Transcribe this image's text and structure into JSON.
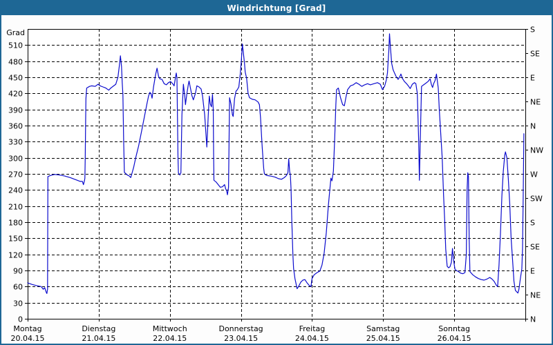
{
  "window": {
    "title": "Windrichtung [Grad]"
  },
  "colors": {
    "titlebar": "#1e6795",
    "window_border": "#1e6795",
    "plot_background": "#ffffff",
    "line": "#0a0acd",
    "grid": "#000000",
    "text": "#000000"
  },
  "chart_data": {
    "type": "line",
    "title": "Windrichtung [Grad]",
    "ylabel": "Grad",
    "ylim": [
      0,
      540
    ],
    "y_tick_step": 30,
    "y_tick_labels": [
      "0",
      "30",
      "60",
      "90",
      "120",
      "150",
      "180",
      "210",
      "240",
      "270",
      "300",
      "330",
      "360",
      "390",
      "420",
      "450",
      "480",
      "510"
    ],
    "grid": "dashed",
    "legend_position": "none",
    "right_axis_compass": [
      {
        "label": "S",
        "deg": 540
      },
      {
        "label": "SE",
        "deg": 495
      },
      {
        "label": "E",
        "deg": 450
      },
      {
        "label": "NE",
        "deg": 405
      },
      {
        "label": "N",
        "deg": 360
      },
      {
        "label": "NW",
        "deg": 315
      },
      {
        "label": "W",
        "deg": 270
      },
      {
        "label": "SW",
        "deg": 225
      },
      {
        "label": "S",
        "deg": 180
      },
      {
        "label": "SE",
        "deg": 135
      },
      {
        "label": "E",
        "deg": 90
      },
      {
        "label": "NE",
        "deg": 45
      },
      {
        "label": "N",
        "deg": 0
      }
    ],
    "days": [
      {
        "name": "Montag",
        "date": "20.04.15"
      },
      {
        "name": "Dienstag",
        "date": "21.04.15"
      },
      {
        "name": "Mittwoch",
        "date": "22.04.15"
      },
      {
        "name": "Donnerstag",
        "date": "23.04.15"
      },
      {
        "name": "Freitag",
        "date": "24.04.15"
      },
      {
        "name": "Samstag",
        "date": "25.04.15"
      },
      {
        "name": "Sonntag",
        "date": "26.04.15"
      }
    ],
    "series": [
      {
        "name": "Windrichtung",
        "x_unit": "days_since_monday",
        "y_unit": "Grad",
        "points": [
          [
            0.0,
            67
          ],
          [
            0.06,
            64
          ],
          [
            0.12,
            62
          ],
          [
            0.19,
            60
          ],
          [
            0.22,
            55
          ],
          [
            0.24,
            58
          ],
          [
            0.26,
            50
          ],
          [
            0.27,
            47
          ],
          [
            0.28,
            55
          ],
          [
            0.285,
            265
          ],
          [
            0.32,
            267
          ],
          [
            0.38,
            269
          ],
          [
            0.45,
            268
          ],
          [
            0.52,
            266
          ],
          [
            0.6,
            263
          ],
          [
            0.68,
            259
          ],
          [
            0.74,
            256
          ],
          [
            0.77,
            256
          ],
          [
            0.785,
            250
          ],
          [
            0.8,
            258
          ],
          [
            0.805,
            262
          ],
          [
            0.81,
            300
          ],
          [
            0.815,
            360
          ],
          [
            0.82,
            410
          ],
          [
            0.83,
            430
          ],
          [
            0.87,
            433
          ],
          [
            0.9,
            434
          ],
          [
            0.95,
            433
          ],
          [
            0.99,
            437
          ],
          [
            1.02,
            434
          ],
          [
            1.06,
            432
          ],
          [
            1.1,
            430
          ],
          [
            1.14,
            426
          ],
          [
            1.17,
            430
          ],
          [
            1.21,
            434
          ],
          [
            1.24,
            437
          ],
          [
            1.27,
            450
          ],
          [
            1.29,
            472
          ],
          [
            1.305,
            490
          ],
          [
            1.32,
            470
          ],
          [
            1.33,
            440
          ],
          [
            1.34,
            418
          ],
          [
            1.35,
            330
          ],
          [
            1.36,
            273
          ],
          [
            1.4,
            268
          ],
          [
            1.43,
            266
          ],
          [
            1.45,
            263
          ],
          [
            1.465,
            270
          ],
          [
            1.49,
            282
          ],
          [
            1.52,
            300
          ],
          [
            1.56,
            322
          ],
          [
            1.6,
            348
          ],
          [
            1.64,
            375
          ],
          [
            1.68,
            402
          ],
          [
            1.7,
            415
          ],
          [
            1.72,
            422
          ],
          [
            1.735,
            419
          ],
          [
            1.75,
            411
          ],
          [
            1.77,
            432
          ],
          [
            1.8,
            455
          ],
          [
            1.82,
            467
          ],
          [
            1.84,
            452
          ],
          [
            1.86,
            447
          ],
          [
            1.89,
            446
          ],
          [
            1.92,
            438
          ],
          [
            1.95,
            436
          ],
          [
            1.98,
            440
          ],
          [
            2.01,
            442
          ],
          [
            2.04,
            438
          ],
          [
            2.06,
            434
          ],
          [
            2.08,
            450
          ],
          [
            2.09,
            458
          ],
          [
            2.1,
            448
          ],
          [
            2.115,
            300
          ],
          [
            2.12,
            272
          ],
          [
            2.14,
            268
          ],
          [
            2.155,
            272
          ],
          [
            2.17,
            380
          ],
          [
            2.19,
            437
          ],
          [
            2.21,
            415
          ],
          [
            2.22,
            399
          ],
          [
            2.24,
            420
          ],
          [
            2.26,
            437
          ],
          [
            2.27,
            443
          ],
          [
            2.29,
            430
          ],
          [
            2.31,
            416
          ],
          [
            2.33,
            408
          ],
          [
            2.36,
            420
          ],
          [
            2.38,
            434
          ],
          [
            2.41,
            432
          ],
          [
            2.44,
            428
          ],
          [
            2.46,
            415
          ],
          [
            2.49,
            380
          ],
          [
            2.52,
            320
          ],
          [
            2.54,
            380
          ],
          [
            2.555,
            415
          ],
          [
            2.57,
            400
          ],
          [
            2.585,
            395
          ],
          [
            2.6,
            418
          ],
          [
            2.61,
            390
          ],
          [
            2.615,
            310
          ],
          [
            2.62,
            258
          ],
          [
            2.65,
            255
          ],
          [
            2.68,
            250
          ],
          [
            2.71,
            245
          ],
          [
            2.74,
            246
          ],
          [
            2.77,
            250
          ],
          [
            2.785,
            242
          ],
          [
            2.8,
            238
          ],
          [
            2.81,
            231
          ],
          [
            2.825,
            245
          ],
          [
            2.83,
            300
          ],
          [
            2.84,
            412
          ],
          [
            2.86,
            400
          ],
          [
            2.88,
            380
          ],
          [
            2.89,
            377
          ],
          [
            2.91,
            410
          ],
          [
            2.93,
            424
          ],
          [
            2.95,
            427
          ],
          [
            2.97,
            432
          ],
          [
            2.99,
            455
          ],
          [
            3.005,
            480
          ],
          [
            3.02,
            512
          ],
          [
            3.03,
            500
          ],
          [
            3.05,
            476
          ],
          [
            3.06,
            460
          ],
          [
            3.08,
            448
          ],
          [
            3.1,
            420
          ],
          [
            3.12,
            412
          ],
          [
            3.16,
            409
          ],
          [
            3.2,
            408
          ],
          [
            3.24,
            404
          ],
          [
            3.26,
            399
          ],
          [
            3.275,
            375
          ],
          [
            3.29,
            340
          ],
          [
            3.3,
            318
          ],
          [
            3.32,
            280
          ],
          [
            3.33,
            270
          ],
          [
            3.36,
            267
          ],
          [
            3.42,
            266
          ],
          [
            3.48,
            264
          ],
          [
            3.53,
            261
          ],
          [
            3.57,
            260
          ],
          [
            3.61,
            263
          ],
          [
            3.64,
            267
          ],
          [
            3.66,
            272
          ],
          [
            3.672,
            298
          ],
          [
            3.685,
            275
          ],
          [
            3.695,
            267
          ],
          [
            3.705,
            240
          ],
          [
            3.715,
            185
          ],
          [
            3.73,
            120
          ],
          [
            3.74,
            94
          ],
          [
            3.76,
            75
          ],
          [
            3.79,
            56
          ],
          [
            3.81,
            60
          ],
          [
            3.84,
            68
          ],
          [
            3.87,
            72
          ],
          [
            3.9,
            73
          ],
          [
            3.93,
            67
          ],
          [
            3.96,
            62
          ],
          [
            3.985,
            60
          ],
          [
            4.0,
            75
          ],
          [
            4.03,
            82
          ],
          [
            4.07,
            86
          ],
          [
            4.11,
            89
          ],
          [
            4.14,
            100
          ],
          [
            4.17,
            122
          ],
          [
            4.2,
            160
          ],
          [
            4.23,
            212
          ],
          [
            4.25,
            240
          ],
          [
            4.265,
            262
          ],
          [
            4.28,
            257
          ],
          [
            4.3,
            275
          ],
          [
            4.32,
            340
          ],
          [
            4.335,
            400
          ],
          [
            4.345,
            427
          ],
          [
            4.37,
            430
          ],
          [
            4.4,
            412
          ],
          [
            4.43,
            399
          ],
          [
            4.455,
            397
          ],
          [
            4.48,
            415
          ],
          [
            4.5,
            427
          ],
          [
            4.54,
            434
          ],
          [
            4.58,
            436
          ],
          [
            4.62,
            440
          ],
          [
            4.66,
            437
          ],
          [
            4.7,
            433
          ],
          [
            4.74,
            436
          ],
          [
            4.78,
            438
          ],
          [
            4.82,
            436
          ],
          [
            4.87,
            438
          ],
          [
            4.92,
            440
          ],
          [
            4.96,
            437
          ],
          [
            4.99,
            427
          ],
          [
            5.02,
            433
          ],
          [
            5.045,
            445
          ],
          [
            5.06,
            458
          ],
          [
            5.08,
            500
          ],
          [
            5.09,
            531
          ],
          [
            5.1,
            510
          ],
          [
            5.12,
            476
          ],
          [
            5.14,
            464
          ],
          [
            5.16,
            458
          ],
          [
            5.18,
            452
          ],
          [
            5.21,
            446
          ],
          [
            5.23,
            450
          ],
          [
            5.25,
            456
          ],
          [
            5.27,
            448
          ],
          [
            5.3,
            442
          ],
          [
            5.33,
            438
          ],
          [
            5.36,
            433
          ],
          [
            5.38,
            429
          ],
          [
            5.41,
            437
          ],
          [
            5.44,
            440
          ],
          [
            5.46,
            438
          ],
          [
            5.48,
            420
          ],
          [
            5.5,
            330
          ],
          [
            5.51,
            258
          ],
          [
            5.525,
            350
          ],
          [
            5.54,
            433
          ],
          [
            5.57,
            436
          ],
          [
            5.6,
            439
          ],
          [
            5.63,
            442
          ],
          [
            5.66,
            447
          ],
          [
            5.68,
            436
          ],
          [
            5.695,
            431
          ],
          [
            5.71,
            438
          ],
          [
            5.73,
            444
          ],
          [
            5.75,
            456
          ],
          [
            5.76,
            445
          ],
          [
            5.775,
            430
          ],
          [
            5.79,
            390
          ],
          [
            5.81,
            345
          ],
          [
            5.83,
            300
          ],
          [
            5.85,
            230
          ],
          [
            5.865,
            184
          ],
          [
            5.88,
            130
          ],
          [
            5.9,
            98
          ],
          [
            5.92,
            95
          ],
          [
            5.94,
            97
          ],
          [
            5.96,
            105
          ],
          [
            5.975,
            131
          ],
          [
            5.99,
            110
          ],
          [
            6.01,
            92
          ],
          [
            6.03,
            90
          ],
          [
            6.06,
            88
          ],
          [
            6.09,
            85
          ],
          [
            6.12,
            84
          ],
          [
            6.15,
            86
          ],
          [
            6.17,
            120
          ],
          [
            6.18,
            240
          ],
          [
            6.19,
            272
          ],
          [
            6.2,
            265
          ],
          [
            6.21,
            150
          ],
          [
            6.22,
            88
          ],
          [
            6.26,
            82
          ],
          [
            6.3,
            78
          ],
          [
            6.34,
            75
          ],
          [
            6.38,
            73
          ],
          [
            6.42,
            72
          ],
          [
            6.46,
            74
          ],
          [
            6.5,
            77
          ],
          [
            6.53,
            74
          ],
          [
            6.56,
            70
          ],
          [
            6.59,
            63
          ],
          [
            6.61,
            60
          ],
          [
            6.63,
            100
          ],
          [
            6.65,
            160
          ],
          [
            6.67,
            230
          ],
          [
            6.69,
            275
          ],
          [
            6.71,
            305
          ],
          [
            6.72,
            311
          ],
          [
            6.74,
            300
          ],
          [
            6.76,
            262
          ],
          [
            6.78,
            215
          ],
          [
            6.8,
            150
          ],
          [
            6.82,
            110
          ],
          [
            6.84,
            70
          ],
          [
            6.86,
            53
          ],
          [
            6.88,
            50
          ],
          [
            6.895,
            48
          ],
          [
            6.91,
            55
          ],
          [
            6.93,
            75
          ],
          [
            6.95,
            93
          ],
          [
            6.96,
            130
          ],
          [
            6.97,
            230
          ],
          [
            6.98,
            345
          ]
        ]
      }
    ]
  }
}
